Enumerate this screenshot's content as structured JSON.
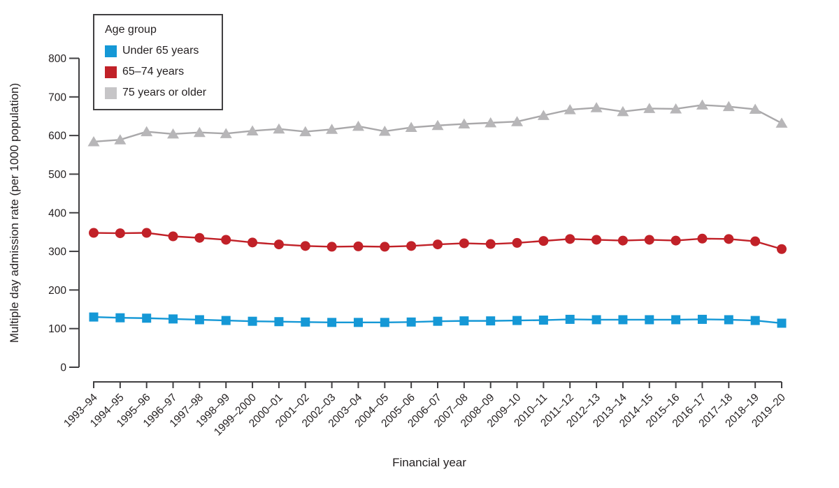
{
  "figure": {
    "xlabel": "Financial year",
    "ylabel": "Multiple day admission rate (per 1000 population)"
  },
  "legend": {
    "title": "Age group",
    "items": [
      {
        "label": "Under 65 years",
        "color": "#1598D6"
      },
      {
        "label": "65–74 years",
        "color": "#C12128"
      },
      {
        "label": "75 years or older",
        "color": "#C6C5C7"
      }
    ]
  },
  "colors": {
    "text": "#231F20",
    "axis": "#403F41",
    "series_blue": "#1598D6",
    "series_red": "#C12128",
    "series_gray_marker": "#B7B6B8",
    "series_gray_line": "#A9A8AA"
  },
  "chart_data": {
    "type": "line",
    "title": "",
    "xlabel": "Financial year",
    "ylabel": "Multiple day admission rate (per 1000 population)",
    "legend_title": "Age group",
    "legend_position": "top-left",
    "grid": false,
    "ylim": [
      0,
      800
    ],
    "yticks": [
      0,
      100,
      200,
      300,
      400,
      500,
      600,
      700,
      800
    ],
    "categories": [
      "1993–94",
      "1994–95",
      "1995–96",
      "1996–97",
      "1997–98",
      "1998–99",
      "1999–2000",
      "2000–01",
      "2001–02",
      "2002–03",
      "2003–04",
      "2004–05",
      "2005–06",
      "2006–07",
      "2007–08",
      "2008–09",
      "2009–10",
      "2010–11",
      "2011–12",
      "2012–13",
      "2013–14",
      "2014–15",
      "2015–16",
      "2016–17",
      "2017–18",
      "2018–19",
      "2019–20"
    ],
    "series": [
      {
        "id": "under-65",
        "name": "Under 65 years",
        "marker": "square",
        "color": "#1598D6",
        "values": [
          130,
          128,
          127,
          125,
          123,
          121,
          119,
          118,
          117,
          116,
          116,
          116,
          117,
          119,
          120,
          120,
          121,
          122,
          124,
          123,
          123,
          123,
          123,
          124,
          123,
          121,
          114
        ]
      },
      {
        "id": "65-74",
        "name": "65–74 years",
        "marker": "circle",
        "color": "#C12128",
        "values": [
          348,
          347,
          348,
          339,
          335,
          330,
          323,
          318,
          314,
          312,
          313,
          312,
          314,
          318,
          321,
          319,
          322,
          327,
          332,
          330,
          328,
          330,
          328,
          333,
          332,
          326,
          306
        ]
      },
      {
        "id": "75-plus",
        "name": "75 years or older",
        "marker": "triangle",
        "color": "#B7B6B8",
        "line_color": "#A9A8AA",
        "values": [
          584,
          589,
          610,
          604,
          608,
          605,
          612,
          617,
          610,
          616,
          624,
          611,
          621,
          626,
          630,
          633,
          636,
          652,
          667,
          672,
          662,
          670,
          669,
          679,
          675,
          668,
          632
        ]
      }
    ]
  }
}
